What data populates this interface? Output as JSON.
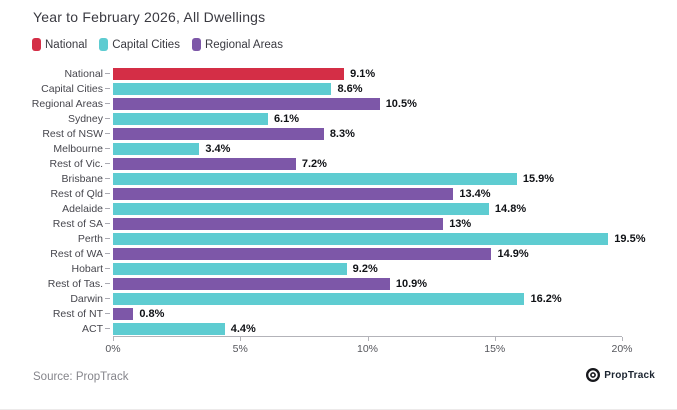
{
  "title": "Year to February 2026, All Dwellings",
  "legend": [
    "National",
    "Capital Cities",
    "Regional Areas"
  ],
  "colors": {
    "National": "#d42e46",
    "Capital Cities": "#5eccd1",
    "Regional Areas": "#7d57a8"
  },
  "chart_data": {
    "type": "bar",
    "orientation": "horizontal",
    "title": "Year to February 2026, All Dwellings",
    "xlabel": "",
    "ylabel": "",
    "xlim": [
      0,
      20
    ],
    "grid": false,
    "legend_position": "top",
    "x_ticks": [
      {
        "value": 0,
        "label": "0%"
      },
      {
        "value": 5,
        "label": "5%"
      },
      {
        "value": 10,
        "label": "10%"
      },
      {
        "value": 15,
        "label": "15%"
      },
      {
        "value": 20,
        "label": "20%"
      }
    ],
    "rows": [
      {
        "label": "National",
        "value": 9.1,
        "display": "9.1%",
        "group": "National"
      },
      {
        "label": "Capital Cities",
        "value": 8.6,
        "display": "8.6%",
        "group": "Capital Cities"
      },
      {
        "label": "Regional Areas",
        "value": 10.5,
        "display": "10.5%",
        "group": "Regional Areas"
      },
      {
        "label": "Sydney",
        "value": 6.1,
        "display": "6.1%",
        "group": "Capital Cities"
      },
      {
        "label": "Rest of NSW",
        "value": 8.3,
        "display": "8.3%",
        "group": "Regional Areas"
      },
      {
        "label": "Melbourne",
        "value": 3.4,
        "display": "3.4%",
        "group": "Capital Cities"
      },
      {
        "label": "Rest of Vic.",
        "value": 7.2,
        "display": "7.2%",
        "group": "Regional Areas"
      },
      {
        "label": "Brisbane",
        "value": 15.9,
        "display": "15.9%",
        "group": "Capital Cities"
      },
      {
        "label": "Rest of Qld",
        "value": 13.4,
        "display": "13.4%",
        "group": "Regional Areas"
      },
      {
        "label": "Adelaide",
        "value": 14.8,
        "display": "14.8%",
        "group": "Capital Cities"
      },
      {
        "label": "Rest of SA",
        "value": 13,
        "display": "13%",
        "group": "Regional Areas"
      },
      {
        "label": "Perth",
        "value": 19.5,
        "display": "19.5%",
        "group": "Capital Cities"
      },
      {
        "label": "Rest of WA",
        "value": 14.9,
        "display": "14.9%",
        "group": "Regional Areas"
      },
      {
        "label": "Hobart",
        "value": 9.2,
        "display": "9.2%",
        "group": "Capital Cities"
      },
      {
        "label": "Rest of Tas.",
        "value": 10.9,
        "display": "10.9%",
        "group": "Regional Areas"
      },
      {
        "label": "Darwin",
        "value": 16.2,
        "display": "16.2%",
        "group": "Capital Cities"
      },
      {
        "label": "Rest of NT",
        "value": 0.8,
        "display": "0.8%",
        "group": "Regional Areas"
      },
      {
        "label": "ACT",
        "value": 4.4,
        "display": "4.4%",
        "group": "Capital Cities"
      }
    ]
  },
  "footer": {
    "source": "Source: PropTrack",
    "brand": "PropTrack",
    "brand_icon": "proptrack-circle-logo"
  }
}
